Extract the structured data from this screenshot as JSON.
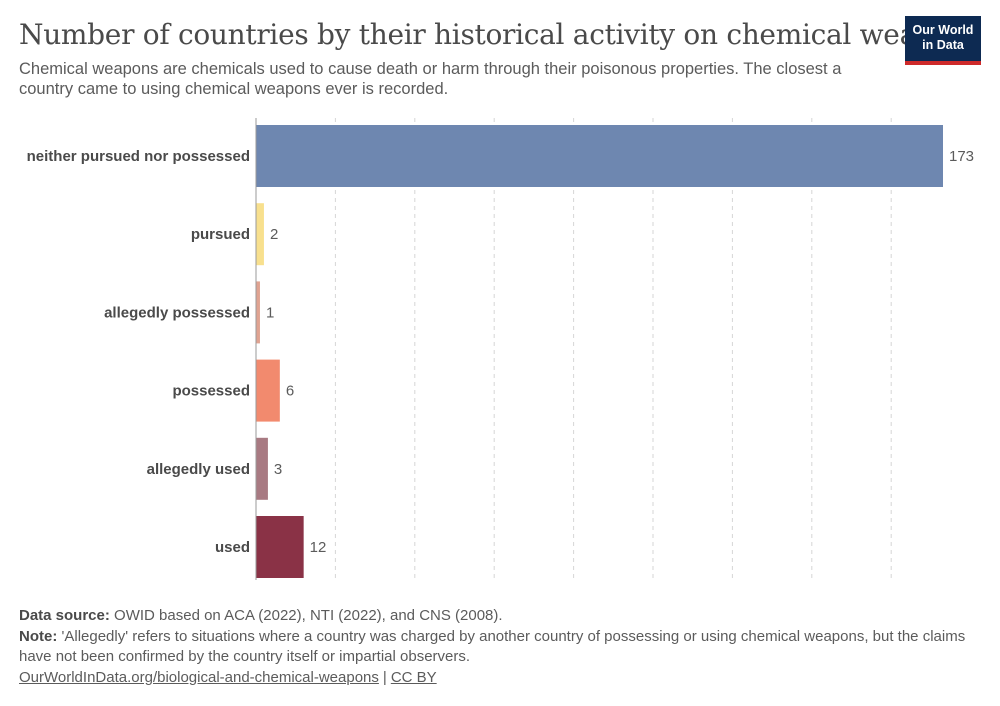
{
  "header": {
    "title": "Number of countries by their historical activity on chemical weapons",
    "subtitle": "Chemical weapons are chemicals used to cause death or harm through their poisonous properties. The closest a country came to using chemical weapons ever is recorded."
  },
  "logo": {
    "line1": "Our World",
    "line2": "in Data",
    "bg_color": "#0d2a52",
    "accent_color": "#ce2a2a"
  },
  "chart_data": {
    "type": "bar",
    "orientation": "horizontal",
    "categories": [
      "neither pursued nor possessed",
      "pursued",
      "allegedly possessed",
      "possessed",
      "allegedly used",
      "used"
    ],
    "values": [
      173,
      2,
      1,
      6,
      3,
      12
    ],
    "colors": [
      "#6e87b0",
      "#f8e08e",
      "#e0a391",
      "#f28a6e",
      "#a87a82",
      "#8a3246"
    ],
    "data_labels": [
      "173",
      "2",
      "1",
      "6",
      "3",
      "12"
    ],
    "xlim": [
      0,
      173
    ],
    "grid": "vertical dashed",
    "legend": "none"
  },
  "footer": {
    "source_label": "Data source:",
    "source_text": "OWID based on ACA (2022), NTI (2022), and CNS (2008).",
    "note_label": "Note:",
    "note_text": "'Allegedly' refers to situations where a country was charged by another country of possessing or using chemical weapons, but the claims have not been confirmed by the country itself or impartial observers.",
    "link_text": "OurWorldInData.org/biological-and-chemical-weapons",
    "separator": "|",
    "license_text": "CC BY"
  }
}
